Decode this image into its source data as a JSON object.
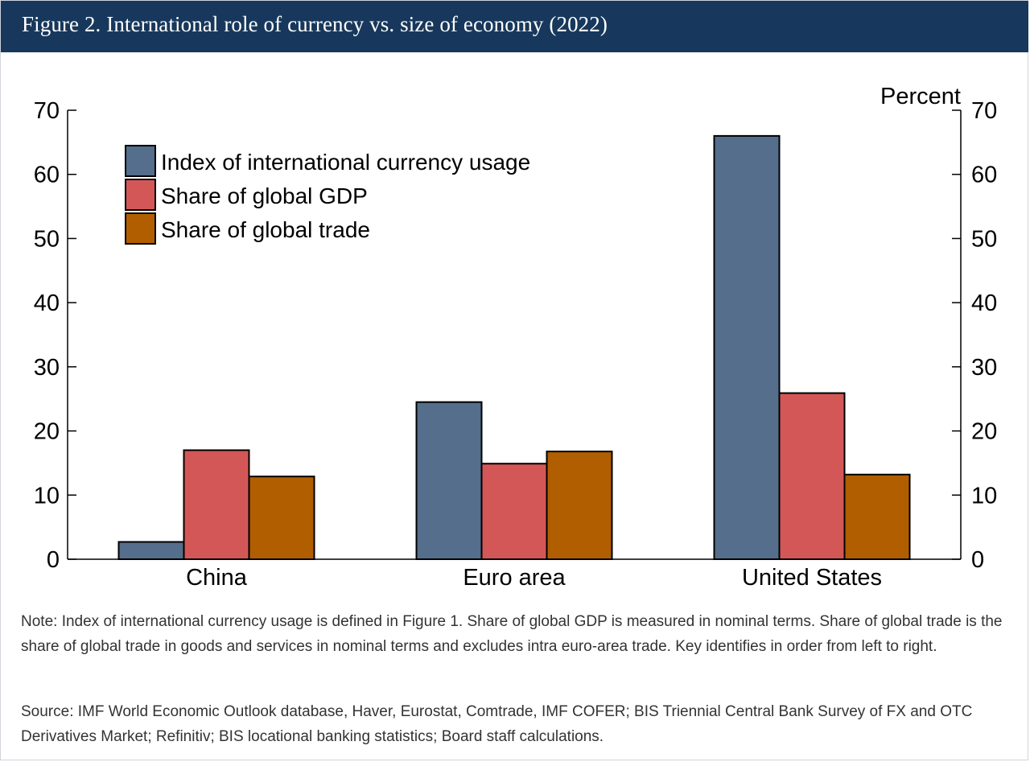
{
  "header": {
    "title": "Figure 2. International role of currency vs. size of economy (2022)"
  },
  "chart_data": {
    "type": "bar",
    "categories": [
      "China",
      "Euro area",
      "United States"
    ],
    "series": [
      {
        "name": "Index of international currency usage",
        "color": "#546e8b",
        "values": [
          2.7,
          24.5,
          66.0
        ]
      },
      {
        "name": "Share of global GDP",
        "color": "#d45757",
        "values": [
          17.0,
          14.9,
          25.9
        ]
      },
      {
        "name": "Share of global trade",
        "color": "#b05e00",
        "values": [
          12.9,
          16.8,
          13.2
        ]
      }
    ],
    "ylim": [
      0,
      70
    ],
    "yticks": [
      0,
      10,
      20,
      30,
      40,
      50,
      60,
      70
    ],
    "ylabel_right": "Percent",
    "legend": "top-left",
    "grid": false
  },
  "notes": {
    "note": "Note: Index of international currency usage is defined in Figure 1. Share of global GDP is measured in nominal terms. Share of global trade is the share of global trade in goods and services in nominal terms and excludes intra euro-area trade. Key identifies in order from left to right.",
    "source": "Source: IMF World Economic Outlook database, Haver, Eurostat, Comtrade, IMF COFER; BIS Triennial Central Bank Survey of FX and OTC Derivatives Market; Refinitiv; BIS locational banking statistics; Board staff calculations."
  }
}
